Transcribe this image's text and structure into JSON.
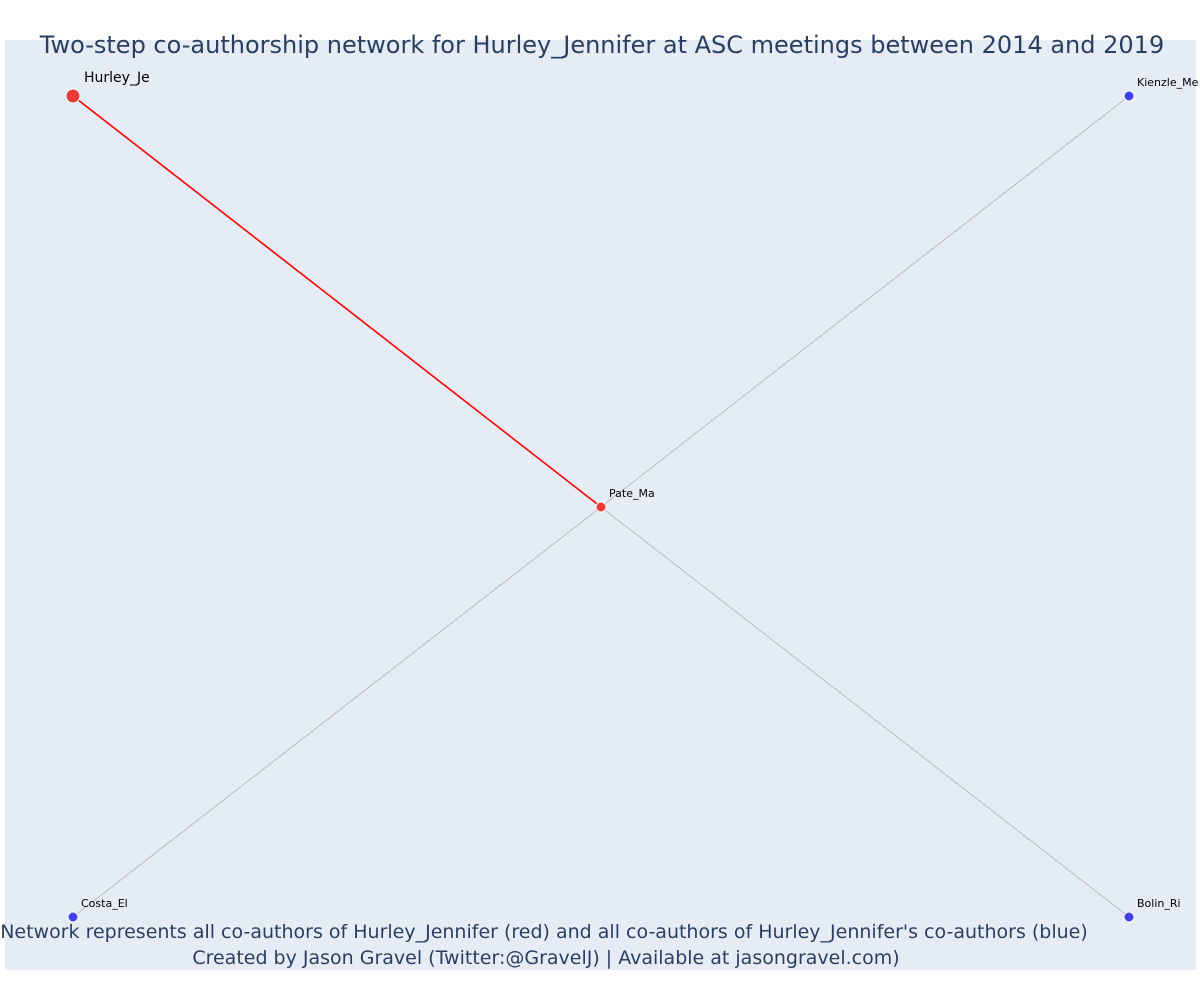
{
  "title": "Two-step co-authorship network for Hurley_Jennifer at ASC meetings between 2014 and 2019",
  "caption": {
    "line1": "Network represents all co-authors of Hurley_Jennifer (red) and all co-authors of Hurley_Jennifer's co-authors (blue)",
    "line2": "Created by Jason Gravel (Twitter:@GravelJ) | Available at jasongravel.com)"
  },
  "colors": {
    "plot_bg": "#e5ecf6",
    "ego_edge": "#ff0000",
    "other_edge": "#b8bccb",
    "red_node": "#ef3a3a",
    "blue_node": "#4040ee",
    "text": "#2a3f5f"
  },
  "network": {
    "nodes": [
      {
        "id": "Hurley_Je",
        "label": "Hurley_Je",
        "group": "ego"
      },
      {
        "id": "Pate_Ma",
        "label": "Pate_Ma",
        "group": "coauthor"
      },
      {
        "id": "Kienzle_Me",
        "label": "Kienzle_Me",
        "group": "second"
      },
      {
        "id": "Costa_El",
        "label": "Costa_El",
        "group": "second"
      },
      {
        "id": "Bolin_Ri",
        "label": "Bolin_Ri",
        "group": "second"
      }
    ],
    "edges": [
      {
        "source": "Hurley_Je",
        "target": "Pate_Ma",
        "type": "ego"
      },
      {
        "source": "Pate_Ma",
        "target": "Kienzle_Me",
        "type": "other"
      },
      {
        "source": "Pate_Ma",
        "target": "Costa_El",
        "type": "other"
      },
      {
        "source": "Pate_Ma",
        "target": "Bolin_Ri",
        "type": "other"
      }
    ]
  }
}
